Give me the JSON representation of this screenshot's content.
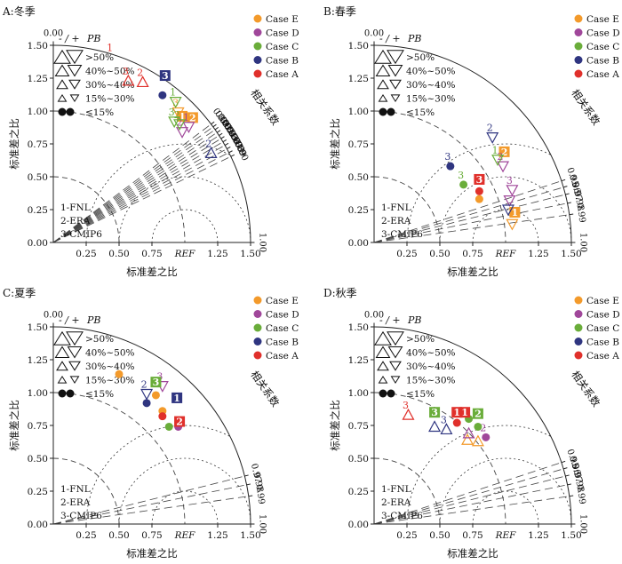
{
  "common": {
    "axis_label_x": "标准差之比",
    "axis_label_y": "标准差之比",
    "corr_label": "相关系数",
    "ref_label": "REF",
    "x_ticks": [
      "0.25",
      "0.50",
      "0.75",
      "1.25",
      "1.50"
    ],
    "y_ticks": [
      "0.00",
      "0.25",
      "0.50",
      "0.75",
      "1.00",
      "1.25",
      "1.50"
    ],
    "sign_label": "- / + ",
    "pb_label": "PB",
    "pb_classes": [
      ">50%",
      "40%~50%",
      "30%~40%",
      "15%~30%",
      "≤15%"
    ],
    "model_labels": [
      "1-FNL",
      "2-ERA",
      "3-CMIP6"
    ],
    "legend": [
      {
        "name": "Case E",
        "color": "#f39a2b"
      },
      {
        "name": "Case D",
        "color": "#a0479a"
      },
      {
        "name": "Case C",
        "color": "#6aad3a"
      },
      {
        "name": "Case B",
        "color": "#2f3580"
      },
      {
        "name": "Case A",
        "color": "#e0302b"
      }
    ]
  },
  "panels": [
    {
      "title": "A:冬季",
      "corr_ticks": [
        "0.00",
        "0.80",
        "0.81",
        "0.82",
        "0.83",
        "0.84",
        "0.85",
        "0.86",
        "0.87",
        "0.88",
        "0.89",
        "0.90",
        "1.00"
      ],
      "chart_data": {
        "type": "scatter",
        "subtitle": "Taylor diagram",
        "points": [
          {
            "case": "E",
            "model": "1",
            "x": 0.98,
            "y": 0.96,
            "marker": "square"
          },
          {
            "case": "E",
            "model": "2",
            "x": 1.06,
            "y": 0.95,
            "marker": "square"
          },
          {
            "case": "E",
            "model": "3",
            "x": 0.95,
            "y": 0.99,
            "marker": "tri-down"
          },
          {
            "case": "D",
            "model": "1",
            "x": 1.03,
            "y": 0.88,
            "marker": "tri-down"
          },
          {
            "case": "D",
            "model": "2",
            "x": 0.98,
            "y": 0.84,
            "marker": "tri-down"
          },
          {
            "case": "C",
            "model": "1",
            "x": 0.93,
            "y": 1.07,
            "marker": "tri-down"
          },
          {
            "case": "C",
            "model": "2",
            "x": 0.96,
            "y": 0.9,
            "marker": "tri-down"
          },
          {
            "case": "C",
            "model": "3",
            "x": 0.92,
            "y": 0.92,
            "marker": "tri-down"
          },
          {
            "case": "B",
            "model": "3",
            "x": 0.85,
            "y": 1.27,
            "marker": "square"
          },
          {
            "case": "B",
            "model": "",
            "x": 0.83,
            "y": 1.12,
            "marker": "circle"
          },
          {
            "case": "B",
            "model": "2",
            "x": 1.2,
            "y": 0.68,
            "marker": "tri-up"
          },
          {
            "case": "A",
            "model": "3",
            "x": 0.57,
            "y": 1.23,
            "marker": "tri-up"
          },
          {
            "case": "A",
            "model": "2",
            "x": 0.68,
            "y": 1.22,
            "marker": "tri-up"
          },
          {
            "case": "A",
            "model": "1",
            "x": 0.45,
            "y": 1.41,
            "marker": "none"
          }
        ]
      }
    },
    {
      "title": "B:春季",
      "corr_ticks": [
        "0.00",
        "0.95",
        "0.96",
        "0.97",
        "0.98",
        "0.99",
        "1.00"
      ],
      "chart_data": {
        "type": "scatter",
        "subtitle": "Taylor diagram",
        "points": [
          {
            "case": "E",
            "model": "2",
            "x": 0.99,
            "y": 0.69,
            "marker": "square"
          },
          {
            "case": "E",
            "model": "1",
            "x": 1.07,
            "y": 0.23,
            "marker": "square"
          },
          {
            "case": "E",
            "model": "",
            "x": 1.05,
            "y": 0.14,
            "marker": "tri-down"
          },
          {
            "case": "E",
            "model": "",
            "x": 0.8,
            "y": 0.33,
            "marker": "circle"
          },
          {
            "case": "D",
            "model": "2",
            "x": 0.98,
            "y": 0.58,
            "marker": "tri-down"
          },
          {
            "case": "D",
            "model": "3",
            "x": 1.05,
            "y": 0.4,
            "marker": "tri-down"
          },
          {
            "case": "D",
            "model": "",
            "x": 1.03,
            "y": 0.32,
            "marker": "tri-down"
          },
          {
            "case": "C",
            "model": "3",
            "x": 0.68,
            "y": 0.44,
            "marker": "circle"
          },
          {
            "case": "C",
            "model": "1",
            "x": 0.94,
            "y": 0.63,
            "marker": "tri-down"
          },
          {
            "case": "B",
            "model": "2",
            "x": 0.9,
            "y": 0.8,
            "marker": "tri-down"
          },
          {
            "case": "B",
            "model": "3",
            "x": 0.58,
            "y": 0.58,
            "marker": "circle"
          },
          {
            "case": "B",
            "model": "",
            "x": 1.02,
            "y": 0.25,
            "marker": "tri-down"
          },
          {
            "case": "A",
            "model": "3",
            "x": 0.8,
            "y": 0.48,
            "marker": "square"
          },
          {
            "case": "A",
            "model": "",
            "x": 0.8,
            "y": 0.39,
            "marker": "circle"
          }
        ]
      }
    },
    {
      "title": "C:夏季",
      "corr_ticks": [
        "0.00",
        "0.97",
        "0.98",
        "0.99",
        "1.00"
      ],
      "chart_data": {
        "type": "scatter",
        "subtitle": "Taylor diagram",
        "points": [
          {
            "case": "E",
            "model": "",
            "x": 0.5,
            "y": 1.14,
            "marker": "circle"
          },
          {
            "case": "E",
            "model": "",
            "x": 0.78,
            "y": 0.98,
            "marker": "circle"
          },
          {
            "case": "E",
            "model": "",
            "x": 0.83,
            "y": 0.86,
            "marker": "circle"
          },
          {
            "case": "D",
            "model": "3",
            "x": 0.83,
            "y": 1.05,
            "marker": "tri-down"
          },
          {
            "case": "D",
            "model": "",
            "x": 0.95,
            "y": 0.74,
            "marker": "circle"
          },
          {
            "case": "C",
            "model": "3",
            "x": 0.78,
            "y": 1.08,
            "marker": "square"
          },
          {
            "case": "C",
            "model": "",
            "x": 0.88,
            "y": 0.74,
            "marker": "circle"
          },
          {
            "case": "B",
            "model": "1",
            "x": 0.94,
            "y": 0.96,
            "marker": "square"
          },
          {
            "case": "B",
            "model": "2",
            "x": 0.71,
            "y": 0.99,
            "marker": "tri-down"
          },
          {
            "case": "B",
            "model": "",
            "x": 0.71,
            "y": 0.92,
            "marker": "circle"
          },
          {
            "case": "A",
            "model": "2",
            "x": 0.96,
            "y": 0.78,
            "marker": "square"
          },
          {
            "case": "A",
            "model": "",
            "x": 0.83,
            "y": 0.82,
            "marker": "circle"
          }
        ]
      }
    },
    {
      "title": "D:秋季",
      "corr_ticks": [
        "0.00",
        "0.95",
        "0.96",
        "0.97",
        "0.98",
        "0.99",
        "1.00"
      ],
      "chart_data": {
        "type": "scatter",
        "subtitle": "Taylor diagram",
        "points": [
          {
            "case": "E",
            "model": "",
            "x": 0.71,
            "y": 0.64,
            "marker": "tri-up"
          },
          {
            "case": "E",
            "model": "",
            "x": 0.79,
            "y": 0.63,
            "marker": "tri-up"
          },
          {
            "case": "D",
            "model": "2",
            "x": 0.85,
            "y": 0.66,
            "marker": "circle"
          },
          {
            "case": "D",
            "model": "",
            "x": 0.72,
            "y": 0.69,
            "marker": "tri-up"
          },
          {
            "case": "C",
            "model": "3",
            "x": 0.46,
            "y": 0.85,
            "marker": "square"
          },
          {
            "case": "C",
            "model": "2",
            "x": 0.79,
            "y": 0.84,
            "marker": "square"
          },
          {
            "case": "C",
            "model": "",
            "x": 0.72,
            "y": 0.8,
            "marker": "circle"
          },
          {
            "case": "C",
            "model": "",
            "x": 0.79,
            "y": 0.74,
            "marker": "circle"
          },
          {
            "case": "B",
            "model": "",
            "x": 0.46,
            "y": 0.74,
            "marker": "tri-up"
          },
          {
            "case": "B",
            "model": "3",
            "x": 0.55,
            "y": 0.72,
            "marker": "tri-up"
          },
          {
            "case": "A",
            "model": "3",
            "x": 0.26,
            "y": 0.83,
            "marker": "tri-up"
          },
          {
            "case": "A",
            "model": "1",
            "x": 0.63,
            "y": 0.85,
            "marker": "square"
          },
          {
            "case": "A",
            "model": "1",
            "x": 0.69,
            "y": 0.85,
            "marker": "square"
          },
          {
            "case": "A",
            "model": "",
            "x": 0.63,
            "y": 0.77,
            "marker": "circle"
          }
        ]
      }
    }
  ]
}
